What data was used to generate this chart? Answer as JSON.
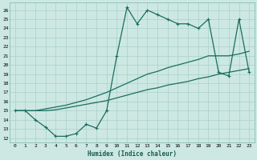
{
  "title": "",
  "xlabel": "Humidex (Indice chaleur)",
  "background_color": "#cde8e2",
  "grid_color": "#a8d0c8",
  "line_color": "#1a6e60",
  "xlim": [
    -0.5,
    23.5
  ],
  "ylim": [
    11.5,
    26.8
  ],
  "xticks": [
    0,
    1,
    2,
    3,
    4,
    5,
    6,
    7,
    8,
    9,
    10,
    11,
    12,
    13,
    14,
    15,
    16,
    17,
    18,
    19,
    20,
    21,
    22,
    23
  ],
  "yticks": [
    12,
    13,
    14,
    15,
    16,
    17,
    18,
    19,
    20,
    21,
    22,
    23,
    24,
    25,
    26
  ],
  "line1_x": [
    0,
    1,
    2,
    3,
    4,
    5,
    6,
    7,
    8,
    9,
    10,
    11,
    12,
    13,
    14,
    15,
    16,
    17,
    18,
    19,
    20,
    21,
    22,
    23
  ],
  "line1_y": [
    15.0,
    15.0,
    14.0,
    13.2,
    12.2,
    12.2,
    12.5,
    13.5,
    13.1,
    15.0,
    21.0,
    26.3,
    24.5,
    26.0,
    25.5,
    25.0,
    24.5,
    24.5,
    24.0,
    25.0,
    19.2,
    18.8,
    25.0,
    19.2
  ],
  "line2_x": [
    0,
    1,
    2,
    3,
    4,
    5,
    6,
    7,
    8,
    9,
    10,
    11,
    12,
    13,
    14,
    15,
    16,
    17,
    18,
    19,
    20,
    21,
    22,
    23
  ],
  "line2_y": [
    15.0,
    15.0,
    15.0,
    15.2,
    15.4,
    15.6,
    15.9,
    16.2,
    16.6,
    17.0,
    17.5,
    18.0,
    18.5,
    19.0,
    19.3,
    19.7,
    20.0,
    20.3,
    20.6,
    21.0,
    21.0,
    21.0,
    21.2,
    21.5
  ],
  "line3_x": [
    0,
    1,
    2,
    3,
    4,
    5,
    6,
    7,
    8,
    9,
    10,
    11,
    12,
    13,
    14,
    15,
    16,
    17,
    18,
    19,
    20,
    21,
    22,
    23
  ],
  "line3_y": [
    15.0,
    15.0,
    15.0,
    15.0,
    15.1,
    15.3,
    15.5,
    15.7,
    15.9,
    16.1,
    16.4,
    16.7,
    17.0,
    17.3,
    17.5,
    17.8,
    18.0,
    18.2,
    18.5,
    18.7,
    19.0,
    19.2,
    19.4,
    19.6
  ]
}
